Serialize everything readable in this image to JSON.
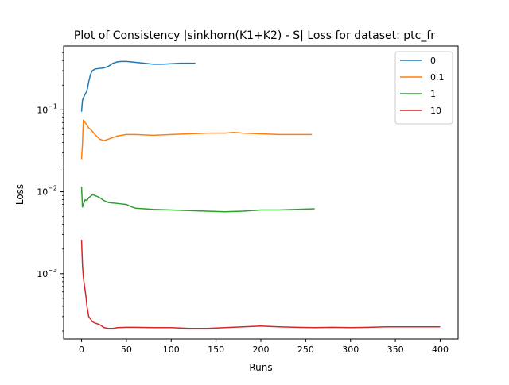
{
  "chart_data": {
    "type": "line",
    "title": "Plot of Consistency |sinkhorn(K1+K2) - S| Loss for dataset: ptc_fr",
    "xlabel": "Runs",
    "ylabel": "Loss",
    "yscale": "log",
    "xlim": [
      -20,
      420
    ],
    "ylim": [
      0.00016,
      0.6
    ],
    "xticks": [
      0,
      50,
      100,
      150,
      200,
      250,
      300,
      350,
      400
    ],
    "xtick_labels": [
      "0",
      "50",
      "100",
      "150",
      "200",
      "250",
      "300",
      "350",
      "400"
    ],
    "yticks": [
      0.001,
      0.01,
      0.1
    ],
    "ytick_labels": [
      "10^-3",
      "10^-2",
      "10^-1"
    ],
    "grid": false,
    "legend_position": "top-right",
    "series": [
      {
        "name": "0",
        "color": "#1f77b4",
        "x": [
          0,
          1,
          2,
          4,
          6,
          8,
          10,
          12,
          15,
          20,
          25,
          30,
          35,
          40,
          45,
          50,
          55,
          60,
          70,
          80,
          90,
          100,
          110,
          120,
          127
        ],
        "y": [
          0.095,
          0.13,
          0.14,
          0.155,
          0.17,
          0.22,
          0.27,
          0.3,
          0.315,
          0.32,
          0.325,
          0.34,
          0.37,
          0.385,
          0.39,
          0.39,
          0.385,
          0.38,
          0.37,
          0.36,
          0.36,
          0.365,
          0.37,
          0.37,
          0.37
        ]
      },
      {
        "name": "0.1",
        "color": "#ff7f0e",
        "x": [
          0,
          1,
          2,
          4,
          6,
          8,
          10,
          15,
          20,
          25,
          30,
          40,
          50,
          60,
          80,
          100,
          120,
          140,
          160,
          170,
          180,
          200,
          220,
          240,
          257
        ],
        "y": [
          0.025,
          0.038,
          0.075,
          0.07,
          0.065,
          0.06,
          0.058,
          0.05,
          0.044,
          0.042,
          0.044,
          0.048,
          0.05,
          0.05,
          0.049,
          0.05,
          0.051,
          0.052,
          0.052,
          0.053,
          0.052,
          0.051,
          0.05,
          0.05,
          0.05
        ]
      },
      {
        "name": "1",
        "color": "#2ca02c",
        "x": [
          0,
          1,
          2,
          4,
          6,
          8,
          10,
          12,
          15,
          20,
          25,
          30,
          35,
          40,
          50,
          55,
          60,
          70,
          80,
          100,
          120,
          140,
          160,
          180,
          200,
          220,
          240,
          260
        ],
        "y": [
          0.0115,
          0.0065,
          0.007,
          0.008,
          0.0078,
          0.0085,
          0.0088,
          0.0092,
          0.009,
          0.0085,
          0.0078,
          0.0074,
          0.0073,
          0.0072,
          0.007,
          0.0066,
          0.0063,
          0.0062,
          0.0061,
          0.006,
          0.0059,
          0.0058,
          0.0057,
          0.0058,
          0.006,
          0.006,
          0.0061,
          0.0062
        ]
      },
      {
        "name": "10",
        "color": "#d62728",
        "x": [
          0,
          1,
          2,
          3,
          4,
          5,
          6,
          8,
          10,
          12,
          15,
          20,
          25,
          30,
          35,
          40,
          50,
          60,
          80,
          100,
          120,
          140,
          160,
          180,
          200,
          220,
          240,
          260,
          280,
          300,
          320,
          340,
          360,
          380,
          400
        ],
        "y": [
          0.0026,
          0.0013,
          0.0009,
          0.00075,
          0.00062,
          0.00052,
          0.0004,
          0.0003,
          0.00028,
          0.00026,
          0.00025,
          0.00024,
          0.00022,
          0.000215,
          0.000215,
          0.00022,
          0.000222,
          0.000222,
          0.00022,
          0.00022,
          0.000215,
          0.000215,
          0.00022,
          0.000225,
          0.00023,
          0.000225,
          0.000222,
          0.00022,
          0.000222,
          0.00022,
          0.000222,
          0.000225,
          0.000225,
          0.000225,
          0.000225
        ]
      }
    ]
  }
}
